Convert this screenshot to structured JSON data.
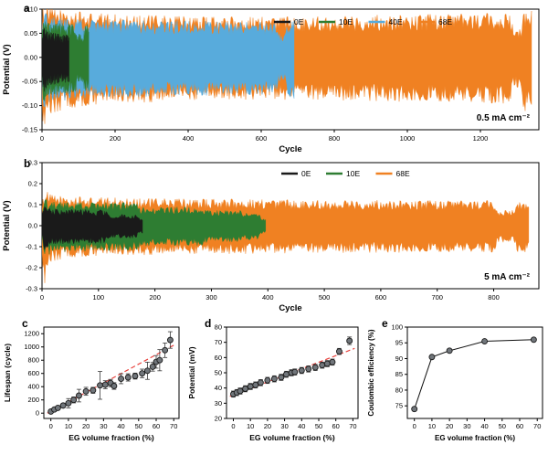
{
  "style": {
    "marker_fill": "#71767b",
    "marker_stroke": "#1a1a1a",
    "errorbar_color": "#3a3a3a",
    "line_color": "#111111"
  },
  "chart_data": [
    {
      "id": "a",
      "type": "area",
      "panel_label": "a",
      "xlabel": "Cycle",
      "ylabel": "Potential (V)",
      "xlim": [
        0,
        1360
      ],
      "ylim": [
        -0.15,
        0.1
      ],
      "xticks": {
        "values": [
          0,
          200,
          400,
          600,
          800,
          1000,
          1200
        ],
        "labels": [
          "0",
          "200",
          "400",
          "600",
          "800",
          "1000",
          "1200"
        ]
      },
      "yticks": {
        "values": [
          -0.15,
          -0.1,
          -0.05,
          0,
          0.05,
          0.1
        ],
        "labels": [
          "-0.15",
          "-0.10",
          "-0.05",
          "0.00",
          "0.05",
          "0.10"
        ]
      },
      "annotation": "0.5 mA cm⁻²",
      "legend": [
        {
          "label": "0E",
          "color": "#1a1a1a"
        },
        {
          "label": "10E",
          "color": "#2e7d32"
        },
        {
          "label": "40E",
          "color": "#58abdc"
        },
        {
          "label": "68E",
          "color": "#f08122"
        }
      ],
      "series": [
        {
          "name": "68E",
          "color": "#f08122",
          "envelope": [
            [
              0,
              0.06,
              -0.07
            ],
            [
              4,
              0.095,
              -0.125
            ],
            [
              18,
              0.082,
              -0.092
            ],
            [
              80,
              0.075,
              -0.082
            ],
            [
              200,
              0.07,
              -0.075
            ],
            [
              500,
              0.066,
              -0.068
            ],
            [
              800,
              0.068,
              -0.07
            ],
            [
              1100,
              0.071,
              -0.073
            ],
            [
              1282,
              0.072,
              -0.075
            ],
            [
              1290,
              0.046,
              -0.05
            ],
            [
              1312,
              0.046,
              -0.05
            ],
            [
              1318,
              0.078,
              -0.088
            ],
            [
              1340,
              0.078,
              -0.088
            ]
          ]
        },
        {
          "name": "40E",
          "color": "#58abdc",
          "envelope": [
            [
              0,
              0.05,
              -0.055
            ],
            [
              4,
              0.075,
              -0.095
            ],
            [
              20,
              0.067,
              -0.073
            ],
            [
              120,
              0.062,
              -0.066
            ],
            [
              450,
              0.059,
              -0.062
            ],
            [
              640,
              0.058,
              -0.06
            ],
            [
              646,
              0.038,
              -0.04
            ],
            [
              666,
              0.038,
              -0.04
            ],
            [
              672,
              0.062,
              -0.068
            ],
            [
              690,
              0.062,
              -0.068
            ]
          ]
        },
        {
          "name": "10E",
          "color": "#2e7d32",
          "envelope": [
            [
              0,
              0.042,
              -0.046
            ],
            [
              4,
              0.06,
              -0.075
            ],
            [
              16,
              0.057,
              -0.062
            ],
            [
              92,
              0.055,
              -0.059
            ],
            [
              98,
              0.038,
              -0.04
            ],
            [
              112,
              0.038,
              -0.04
            ],
            [
              117,
              0.054,
              -0.058
            ],
            [
              128,
              0.054,
              -0.058
            ]
          ]
        },
        {
          "name": "0E",
          "color": "#1a1a1a",
          "envelope": [
            [
              0,
              0.03,
              -0.034
            ],
            [
              4,
              0.05,
              -0.06
            ],
            [
              14,
              0.042,
              -0.047
            ],
            [
              50,
              0.038,
              -0.042
            ],
            [
              74,
              0.036,
              -0.04
            ]
          ]
        }
      ]
    },
    {
      "id": "b",
      "type": "area",
      "panel_label": "b",
      "xlabel": "Cycle",
      "ylabel": "Potential (V)",
      "xlim": [
        0,
        880
      ],
      "ylim": [
        -0.3,
        0.3
      ],
      "xticks": {
        "values": [
          0,
          100,
          200,
          300,
          400,
          500,
          600,
          700,
          800
        ],
        "labels": [
          "0",
          "100",
          "200",
          "300",
          "400",
          "500",
          "600",
          "700",
          "800"
        ]
      },
      "yticks": {
        "values": [
          -0.3,
          -0.2,
          -0.1,
          0,
          0.1,
          0.2,
          0.3
        ],
        "labels": [
          "-0.3",
          "-0.2",
          "-0.1",
          "0.0",
          "0.1",
          "0.2",
          "0.3"
        ]
      },
      "annotation": "5 mA cm⁻²",
      "legend": [
        {
          "label": "0E",
          "color": "#1a1a1a"
        },
        {
          "label": "10E",
          "color": "#2e7d32"
        },
        {
          "label": "68E",
          "color": "#f08122"
        }
      ],
      "series": [
        {
          "name": "68E",
          "color": "#f08122",
          "envelope": [
            [
              0,
              0.08,
              -0.1
            ],
            [
              4,
              0.135,
              -0.24
            ],
            [
              14,
              0.118,
              -0.135
            ],
            [
              50,
              0.108,
              -0.118
            ],
            [
              200,
              0.102,
              -0.108
            ],
            [
              500,
              0.097,
              -0.102
            ],
            [
              760,
              0.094,
              -0.099
            ],
            [
              800,
              0.094,
              -0.099
            ],
            [
              808,
              0.058,
              -0.062
            ],
            [
              836,
              0.058,
              -0.062
            ],
            [
              842,
              0.088,
              -0.1
            ],
            [
              862,
              0.088,
              -0.1
            ]
          ]
        },
        {
          "name": "10E",
          "color": "#2e7d32",
          "envelope": [
            [
              0,
              0.05,
              -0.055
            ],
            [
              4,
              0.1,
              -0.12
            ],
            [
              20,
              0.09,
              -0.098
            ],
            [
              168,
              0.086,
              -0.093
            ],
            [
              174,
              0.07,
              -0.076
            ],
            [
              282,
              0.07,
              -0.076
            ],
            [
              288,
              0.058,
              -0.063
            ],
            [
              352,
              0.058,
              -0.063
            ],
            [
              358,
              0.048,
              -0.052
            ],
            [
              384,
              0.048,
              -0.052
            ],
            [
              388,
              0.028,
              -0.03
            ],
            [
              396,
              0.028,
              -0.03
            ]
          ]
        },
        {
          "name": "0E",
          "color": "#1a1a1a",
          "envelope": [
            [
              0,
              0.045,
              -0.05
            ],
            [
              4,
              0.075,
              -0.09
            ],
            [
              16,
              0.063,
              -0.07
            ],
            [
              112,
              0.06,
              -0.067
            ],
            [
              118,
              0.042,
              -0.047
            ],
            [
              168,
              0.042,
              -0.047
            ],
            [
              172,
              0.028,
              -0.03
            ],
            [
              178,
              0.028,
              -0.03
            ]
          ]
        }
      ]
    },
    {
      "id": "c",
      "type": "scatter",
      "panel_label": "c",
      "xlabel": "EG volume fraction (%)",
      "ylabel": "Lifespan (cycle)",
      "xlim": [
        -4,
        73
      ],
      "ylim": [
        -80,
        1300
      ],
      "xticks": {
        "values": [
          0,
          10,
          20,
          30,
          40,
          50,
          60,
          70
        ],
        "labels": [
          "0",
          "10",
          "20",
          "30",
          "40",
          "50",
          "60",
          "70"
        ]
      },
      "yticks": {
        "values": [
          0,
          200,
          400,
          600,
          800,
          1000,
          1200
        ],
        "labels": [
          "0",
          "200",
          "400",
          "600",
          "800",
          "1000",
          "1200"
        ]
      },
      "trend": {
        "x1": -2,
        "y1": 0,
        "x2": 71,
        "y2": 1040,
        "color": "#e8413c"
      },
      "points": [
        {
          "x": 0,
          "y": 25,
          "err": 12
        },
        {
          "x": 2,
          "y": 55,
          "err": 18
        },
        {
          "x": 4,
          "y": 80,
          "err": 22
        },
        {
          "x": 7,
          "y": 115,
          "err": 30
        },
        {
          "x": 10,
          "y": 150,
          "err": 70
        },
        {
          "x": 13,
          "y": 200,
          "err": 45
        },
        {
          "x": 16,
          "y": 265,
          "err": 95
        },
        {
          "x": 20,
          "y": 330,
          "err": 60
        },
        {
          "x": 24,
          "y": 345,
          "err": 45
        },
        {
          "x": 28,
          "y": 420,
          "err": 210
        },
        {
          "x": 31,
          "y": 430,
          "err": 60
        },
        {
          "x": 34,
          "y": 455,
          "err": 55
        },
        {
          "x": 36,
          "y": 410,
          "err": 50
        },
        {
          "x": 40,
          "y": 520,
          "err": 75
        },
        {
          "x": 44,
          "y": 540,
          "err": 55
        },
        {
          "x": 48,
          "y": 560,
          "err": 45
        },
        {
          "x": 52,
          "y": 600,
          "err": 65
        },
        {
          "x": 55,
          "y": 640,
          "err": 130
        },
        {
          "x": 58,
          "y": 700,
          "err": 65
        },
        {
          "x": 60,
          "y": 775,
          "err": 95
        },
        {
          "x": 62,
          "y": 800,
          "err": 160
        },
        {
          "x": 65,
          "y": 950,
          "err": 110
        },
        {
          "x": 68,
          "y": 1105,
          "err": 125
        }
      ]
    },
    {
      "id": "d",
      "type": "scatter",
      "panel_label": "d",
      "xlabel": "EG volume fraction (%)",
      "ylabel": "Potential (mV)",
      "xlim": [
        -4,
        73
      ],
      "ylim": [
        20,
        80
      ],
      "xticks": {
        "values": [
          0,
          10,
          20,
          30,
          40,
          50,
          60,
          70
        ],
        "labels": [
          "0",
          "10",
          "20",
          "30",
          "40",
          "50",
          "60",
          "70"
        ]
      },
      "yticks": {
        "values": [
          20,
          30,
          40,
          50,
          60,
          70,
          80
        ],
        "labels": [
          "20",
          "30",
          "40",
          "50",
          "60",
          "70",
          "80"
        ]
      },
      "trend": {
        "x1": -2,
        "y1": 34.5,
        "x2": 71,
        "y2": 66,
        "color": "#e8413c"
      },
      "points": [
        {
          "x": 0,
          "y": 36,
          "err": 2
        },
        {
          "x": 2,
          "y": 37,
          "err": 2
        },
        {
          "x": 4,
          "y": 38,
          "err": 2
        },
        {
          "x": 7,
          "y": 39.5,
          "err": 2
        },
        {
          "x": 10,
          "y": 41,
          "err": 2
        },
        {
          "x": 13,
          "y": 42,
          "err": 2
        },
        {
          "x": 16,
          "y": 43.5,
          "err": 2
        },
        {
          "x": 20,
          "y": 45,
          "err": 2
        },
        {
          "x": 24,
          "y": 46,
          "err": 2
        },
        {
          "x": 28,
          "y": 47,
          "err": 2
        },
        {
          "x": 31,
          "y": 49,
          "err": 2
        },
        {
          "x": 34,
          "y": 50,
          "err": 2
        },
        {
          "x": 36,
          "y": 50.5,
          "err": 2
        },
        {
          "x": 40,
          "y": 51.5,
          "err": 2
        },
        {
          "x": 44,
          "y": 52.5,
          "err": 2
        },
        {
          "x": 48,
          "y": 53.5,
          "err": 2
        },
        {
          "x": 52,
          "y": 55,
          "err": 2
        },
        {
          "x": 55,
          "y": 56,
          "err": 2
        },
        {
          "x": 58,
          "y": 57,
          "err": 2
        },
        {
          "x": 62,
          "y": 64,
          "err": 2
        },
        {
          "x": 68,
          "y": 71,
          "err": 2.5
        }
      ]
    },
    {
      "id": "e",
      "type": "line",
      "panel_label": "e",
      "xlabel": "EG volume fraction (%)",
      "ylabel": "Coulombic efficiency (%)",
      "xlim": [
        -4,
        73
      ],
      "ylim": [
        71,
        100
      ],
      "xticks": {
        "values": [
          0,
          10,
          20,
          30,
          40,
          50,
          60,
          70
        ],
        "labels": [
          "0",
          "10",
          "20",
          "30",
          "40",
          "50",
          "60",
          "70"
        ]
      },
      "yticks": {
        "values": [
          75,
          80,
          85,
          90,
          95,
          100
        ],
        "labels": [
          "75",
          "80",
          "85",
          "90",
          "95",
          "100"
        ]
      },
      "points": [
        {
          "x": 0,
          "y": 74
        },
        {
          "x": 10,
          "y": 90.5
        },
        {
          "x": 20,
          "y": 92.5
        },
        {
          "x": 40,
          "y": 95.5
        },
        {
          "x": 68,
          "y": 96
        }
      ]
    }
  ]
}
